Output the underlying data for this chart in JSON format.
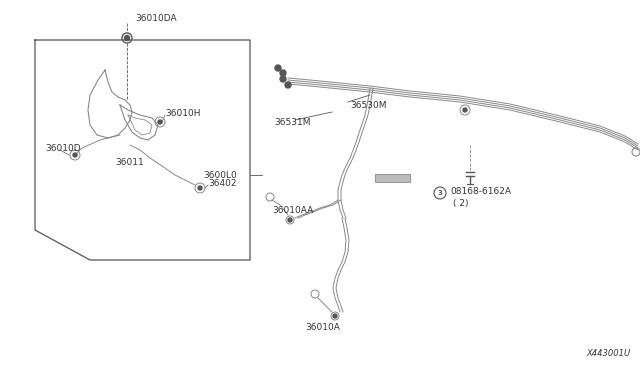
{
  "bg_color": "#ffffff",
  "line_color": "#888888",
  "dark_color": "#555555",
  "text_color": "#333333",
  "diagram_id": "X443001U",
  "figsize": [
    6.4,
    3.72
  ],
  "dpi": 100,
  "xlim": [
    0,
    640
  ],
  "ylim": [
    0,
    372
  ]
}
